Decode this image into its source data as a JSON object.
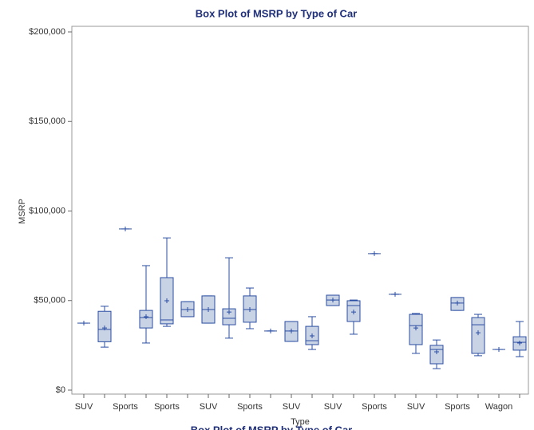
{
  "chart_data": {
    "type": "box",
    "title": "Box Plot of MSRP by Type of Car",
    "x_label": "Type",
    "y_label": "MSRP",
    "categories": [
      "SUV",
      null,
      "Sports",
      null,
      "Sports",
      null,
      "SUV",
      null,
      "Sports",
      null,
      "SUV",
      null,
      "SUV",
      null,
      "Sports",
      null,
      "SUV",
      null,
      "Sports",
      null,
      "Wagon",
      null
    ],
    "min": [
      37400,
      24000,
      90000,
      26300,
      35600,
      41000,
      37400,
      29000,
      34300,
      33000,
      27200,
      22700,
      47200,
      31200,
      76200,
      53500,
      20500,
      12000,
      44500,
      19200,
      22700,
      18700
    ],
    "q1": [
      37400,
      27000,
      90000,
      34700,
      37000,
      41000,
      37400,
      36500,
      37900,
      33000,
      27200,
      25400,
      47200,
      38300,
      76200,
      53500,
      25400,
      14700,
      44500,
      20500,
      22700,
      22300
    ],
    "median": [
      37400,
      33900,
      90000,
      40500,
      39200,
      45000,
      45000,
      40100,
      45000,
      33000,
      33000,
      27600,
      50300,
      47200,
      76200,
      53500,
      36000,
      22700,
      48600,
      36500,
      22700,
      26700
    ],
    "q3": [
      37400,
      44000,
      90000,
      44500,
      62800,
      49400,
      52600,
      45400,
      52600,
      33000,
      38300,
      35600,
      53000,
      49900,
      76200,
      53500,
      42300,
      25000,
      51700,
      40500,
      22700,
      29800
    ],
    "max": [
      37400,
      46800,
      90000,
      69500,
      85000,
      49400,
      52600,
      73900,
      57000,
      33000,
      38300,
      41000,
      53000,
      50300,
      76200,
      53500,
      42800,
      28000,
      51700,
      42300,
      22700,
      38300
    ],
    "mean": [
      37400,
      34700,
      90000,
      41000,
      49900,
      45000,
      45000,
      43600,
      45000,
      33000,
      33000,
      30300,
      50300,
      43600,
      76200,
      53500,
      34700,
      21400,
      48600,
      32000,
      22700,
      26300
    ],
    "color": "#2b4ea2",
    "fill": "#c9d3e6",
    "ylim": [
      0,
      200000
    ],
    "yticks": [
      {
        "value": 0,
        "label": "$0"
      },
      {
        "value": 50000,
        "label": "$50,000"
      },
      {
        "value": 100000,
        "label": "$100,000"
      },
      {
        "value": 150000,
        "label": "$150,000"
      },
      {
        "value": 200000,
        "label": "$200,000"
      }
    ]
  }
}
